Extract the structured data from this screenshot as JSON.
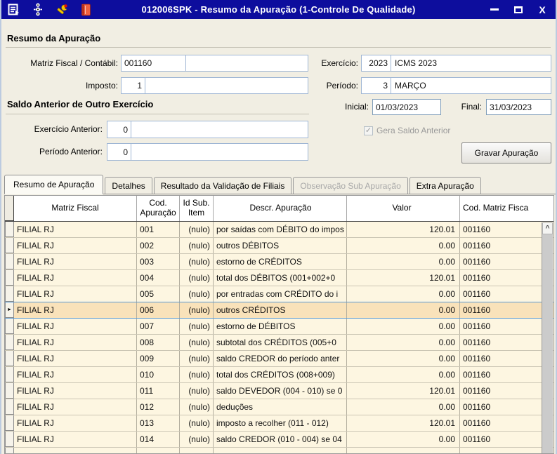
{
  "window": {
    "title": "012006SPK - Resumo da Apuração (1-Controle De Qualidade)",
    "toolbar_icons": [
      "form-export-icon",
      "traffic-light-icon",
      "wrench-icon",
      "book-icon"
    ],
    "controls": {
      "minimize": "minimize",
      "maximize": "maximize",
      "close": "X"
    }
  },
  "colors": {
    "titlebar": "#0d0d9d",
    "row_bg": "#fdf6e1",
    "selected_row_bg": "#f9e2ba",
    "selection_border": "#5b9bd5",
    "field_border": "#9fb6d4"
  },
  "form": {
    "section1_title": "Resumo da Apuração",
    "matriz_label": "Matriz Fiscal / Contábil:",
    "matriz_code": "001160",
    "matriz_desc": "",
    "exercicio_label": "Exercício:",
    "exercicio_code": "2023",
    "exercicio_desc": "ICMS 2023",
    "imposto_label": "Imposto:",
    "imposto_code": "1",
    "imposto_desc": "",
    "periodo_label": "Período:",
    "periodo_code": "3",
    "periodo_desc": "MARÇO",
    "section2_title": "Saldo Anterior de Outro Exercício",
    "inicial_label": "Inicial:",
    "inicial_value": "01/03/2023",
    "final_label": "Final:",
    "final_value": "31/03/2023",
    "exercicio_anterior_label": "Exercício Anterior:",
    "exercicio_anterior_code": "0",
    "periodo_anterior_label": "Período Anterior:",
    "periodo_anterior_code": "0",
    "checkbox_label": "Gera Saldo Anterior",
    "checkbox_checked": true,
    "checkbox_glyph": "✓",
    "button_label": "Gravar Apuração"
  },
  "tabs": [
    {
      "label": "Resumo de Apuração",
      "state": "active"
    },
    {
      "label": "Detalhes",
      "state": "normal"
    },
    {
      "label": "Resultado da Validação de Filiais",
      "state": "normal"
    },
    {
      "label": "Observação Sub Apuração",
      "state": "disabled"
    },
    {
      "label": "Extra Apuração",
      "state": "normal"
    }
  ],
  "grid": {
    "columns": [
      "Matriz Fiscal",
      "Cod. Apuração",
      "Id Sub. Item",
      "Descr. Apuração",
      "Valor",
      "Cod. Matriz Fisca"
    ],
    "scroll_up_glyph": "^",
    "selected_row": 5,
    "selected_row_indicator": "►",
    "rows": [
      [
        "FILIAL RJ",
        "001",
        "(nulo)",
        "por saídas com DÉBITO do impos",
        "120.01",
        "001160"
      ],
      [
        "FILIAL RJ",
        "002",
        "(nulo)",
        "outros DÉBITOS",
        "0.00",
        "001160"
      ],
      [
        "FILIAL RJ",
        "003",
        "(nulo)",
        "estorno de CRÉDITOS",
        "0.00",
        "001160"
      ],
      [
        "FILIAL RJ",
        "004",
        "(nulo)",
        "total dos DÉBITOS (001+002+0",
        "120.01",
        "001160"
      ],
      [
        "FILIAL RJ",
        "005",
        "(nulo)",
        "por entradas com CRÉDITO do i",
        "0.00",
        "001160"
      ],
      [
        "FILIAL RJ",
        "006",
        "(nulo)",
        "outros CRÉDITOS",
        "0.00",
        "001160"
      ],
      [
        "FILIAL RJ",
        "007",
        "(nulo)",
        "estorno de DÉBITOS",
        "0.00",
        "001160"
      ],
      [
        "FILIAL RJ",
        "008",
        "(nulo)",
        "subtotal dos CRÉDITOS (005+0",
        "0.00",
        "001160"
      ],
      [
        "FILIAL RJ",
        "009",
        "(nulo)",
        "saldo CREDOR do período anter",
        "0.00",
        "001160"
      ],
      [
        "FILIAL RJ",
        "010",
        "(nulo)",
        "total dos CRÉDITOS (008+009)",
        "0.00",
        "001160"
      ],
      [
        "FILIAL RJ",
        "011",
        "(nulo)",
        "saldo DEVEDOR (004 - 010) se 0",
        "120.01",
        "001160"
      ],
      [
        "FILIAL RJ",
        "012",
        "(nulo)",
        "deduções",
        "0.00",
        "001160"
      ],
      [
        "FILIAL RJ",
        "013",
        "(nulo)",
        "imposto a recolher (011 - 012)",
        "120.01",
        "001160"
      ],
      [
        "FILIAL RJ",
        "014",
        "(nulo)",
        "saldo CREDOR (010 - 004) se 04",
        "0.00",
        "001160"
      ]
    ]
  }
}
